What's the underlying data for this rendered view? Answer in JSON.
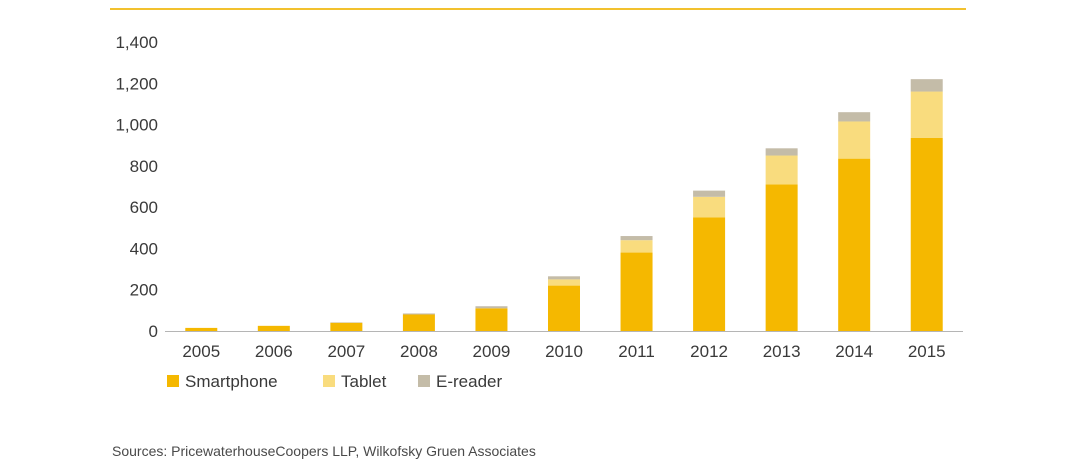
{
  "colors": {
    "top_rule": "#f2c12e",
    "axis": "#b5b5b5",
    "text": "#3a3a3a",
    "smartphone": "#f5b800",
    "tablet": "#f9dc7e",
    "ereader": "#c4bca8"
  },
  "chart_data": {
    "type": "bar",
    "stacked": true,
    "title": "",
    "xlabel": "",
    "ylabel": "",
    "ylim": [
      0,
      1400
    ],
    "yticks": [
      0,
      200,
      400,
      600,
      800,
      1000,
      1200,
      1400
    ],
    "ytick_labels": [
      "0",
      "200",
      "400",
      "600",
      "800",
      "1,000",
      "1,200",
      "1,400"
    ],
    "grid": false,
    "legend_position": "bottom-left",
    "categories": [
      "2005",
      "2006",
      "2007",
      "2008",
      "2009",
      "2010",
      "2011",
      "2012",
      "2013",
      "2014",
      "2015"
    ],
    "series": [
      {
        "name": "Smartphone",
        "color_key": "smartphone",
        "values": [
          15,
          25,
          40,
          80,
          110,
          220,
          380,
          550,
          710,
          835,
          935
        ]
      },
      {
        "name": "Tablet",
        "color_key": "tablet",
        "values": [
          0,
          0,
          0,
          0,
          0,
          30,
          60,
          100,
          140,
          180,
          225
        ]
      },
      {
        "name": "E-reader",
        "color_key": "ereader",
        "values": [
          0,
          0,
          2,
          5,
          10,
          15,
          20,
          30,
          35,
          45,
          60
        ]
      }
    ]
  },
  "source": "Sources: PricewaterhouseCoopers LLP, Wilkofsky Gruen Associates"
}
